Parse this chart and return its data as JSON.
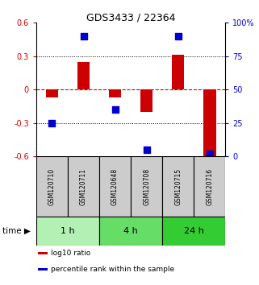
{
  "title": "GDS3433 / 22364",
  "samples": [
    "GSM120710",
    "GSM120711",
    "GSM120648",
    "GSM120708",
    "GSM120715",
    "GSM120716"
  ],
  "log10_ratio": [
    -0.07,
    0.25,
    -0.07,
    -0.2,
    0.31,
    -0.6
  ],
  "percentile_rank": [
    25,
    90,
    35,
    5,
    90,
    2
  ],
  "groups": [
    {
      "label": "1 h",
      "samples": [
        0,
        1
      ],
      "color": "#b3f0b3"
    },
    {
      "label": "4 h",
      "samples": [
        2,
        3
      ],
      "color": "#66dd66"
    },
    {
      "label": "24 h",
      "samples": [
        4,
        5
      ],
      "color": "#33cc33"
    }
  ],
  "ylim_left": [
    -0.6,
    0.6
  ],
  "ylim_right": [
    0,
    100
  ],
  "yticks_left": [
    -0.6,
    -0.3,
    0.0,
    0.3,
    0.6
  ],
  "yticks_right": [
    0,
    25,
    50,
    75,
    100
  ],
  "bar_color": "#cc0000",
  "dot_color": "#0000cc",
  "hline_color": "#cc0000",
  "grid_color": "black",
  "grid_values": [
    -0.3,
    0.3
  ],
  "bar_width": 0.4,
  "dot_size": 30,
  "legend_items": [
    {
      "label": "log10 ratio",
      "color": "#cc0000"
    },
    {
      "label": "percentile rank within the sample",
      "color": "#0000cc"
    }
  ],
  "time_label": "time",
  "ylabel_right_color": "#0000cc",
  "ylabel_left_color": "#cc0000",
  "sample_box_color": "#cccccc",
  "sample_font_size": 5.5,
  "axis_font_size": 7,
  "title_font_size": 9
}
